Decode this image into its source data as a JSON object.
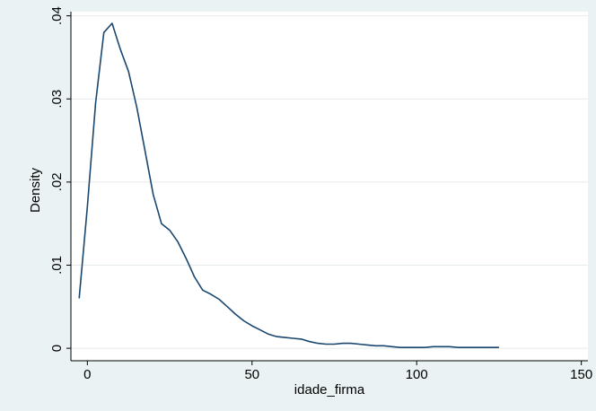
{
  "chart_data": {
    "type": "line",
    "title": "",
    "xlabel": "idade_firma",
    "ylabel": "Density",
    "xlim": [
      -5,
      152
    ],
    "ylim": [
      -0.0015,
      0.0405
    ],
    "xticks": [
      0,
      50,
      100,
      150
    ],
    "xtick_labels": [
      "0",
      "50",
      "100",
      "150"
    ],
    "yticks": [
      0,
      0.01,
      0.02,
      0.03,
      0.04
    ],
    "ytick_labels": [
      "0",
      ".01",
      ".02",
      ".03",
      ".04"
    ],
    "grid": "horizontal",
    "line_color": "#1a476f",
    "series": [
      {
        "x": [
          -2.5,
          0,
          2.5,
          5,
          7.5,
          10,
          12.5,
          15,
          17.5,
          20,
          22.5,
          25,
          27.5,
          30,
          32.5,
          35,
          37.5,
          40,
          42.5,
          45,
          47.5,
          50,
          52.5,
          55,
          57.5,
          60,
          62.5,
          65,
          67.5,
          70,
          72.5,
          75,
          77.5,
          80,
          82.5,
          85,
          87.5,
          90,
          92.5,
          95,
          97.5,
          100,
          102.5,
          105,
          107.5,
          110,
          112.5,
          115,
          117.5,
          120,
          122.5,
          125
        ],
        "values": [
          0.006,
          0.017,
          0.0295,
          0.038,
          0.0391,
          0.036,
          0.0333,
          0.029,
          0.0238,
          0.0185,
          0.015,
          0.0142,
          0.0128,
          0.0108,
          0.0086,
          0.007,
          0.0065,
          0.0059,
          0.005,
          0.0041,
          0.0033,
          0.0027,
          0.0022,
          0.0017,
          0.0014,
          0.0013,
          0.0012,
          0.0011,
          0.0008,
          0.0006,
          0.0005,
          0.0005,
          0.0006,
          0.0006,
          0.0005,
          0.0004,
          0.0003,
          0.0003,
          0.0002,
          0.0001,
          0.0001,
          0.0001,
          0.0001,
          0.0002,
          0.0002,
          0.0002,
          0.0001,
          0.0001,
          0.0001,
          0.0001,
          0.0001,
          0.0001
        ]
      }
    ]
  }
}
